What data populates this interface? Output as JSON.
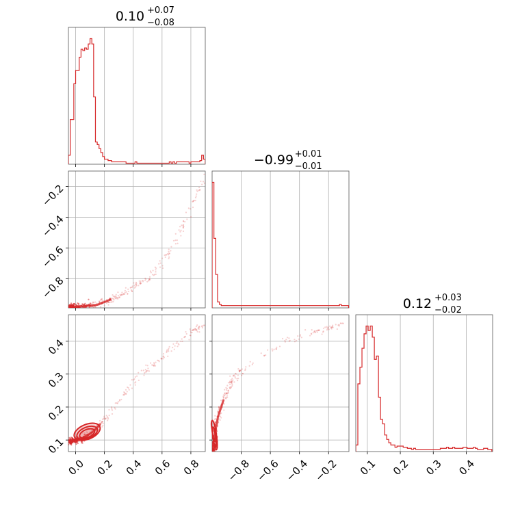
{
  "chart_data": {
    "type": "corner",
    "accent_color": "#d62728",
    "grid": true,
    "titles": [
      {
        "panel": "p00",
        "main": "0.10",
        "sup": "+0.07",
        "sub": "−0.08"
      },
      {
        "panel": "p11",
        "main": "−0.99",
        "sup": "+0.01",
        "sub": "−0.01"
      },
      {
        "panel": "p22",
        "main": "0.12",
        "sup": "+0.03",
        "sub": "−0.02"
      }
    ],
    "axes": {
      "x0": {
        "range": [
          -0.05,
          0.9
        ],
        "ticks": [
          0.0,
          0.2,
          0.4,
          0.6,
          0.8
        ],
        "labels": [
          "0.0",
          "0.2",
          "0.4",
          "0.6",
          "0.8"
        ]
      },
      "x1": {
        "range": [
          -1.0,
          -0.06
        ],
        "ticks": [
          -0.8,
          -0.6,
          -0.4,
          -0.2
        ],
        "labels": [
          "−0.8",
          "−0.6",
          "−0.4",
          "−0.2"
        ]
      },
      "x2": {
        "range": [
          0.065,
          0.48
        ],
        "ticks": [
          0.1,
          0.2,
          0.3,
          0.4
        ],
        "labels": [
          "0.1",
          "0.2",
          "0.3",
          "0.4"
        ]
      },
      "y1": {
        "range": [
          -0.99,
          -0.1
        ],
        "ticks": [
          -0.8,
          -0.6,
          -0.4,
          -0.2
        ],
        "labels": [
          "−0.8",
          "−0.6",
          "−0.4",
          "−0.2"
        ]
      },
      "y2": {
        "range": [
          0.065,
          0.48
        ],
        "ticks": [
          0.1,
          0.2,
          0.3,
          0.4
        ],
        "labels": [
          "0.1",
          "0.2",
          "0.3",
          "0.4"
        ]
      }
    },
    "histograms": [
      {
        "panel": "p00",
        "edges_start": -0.05,
        "bin_width": 0.0125,
        "counts": [
          6,
          33,
          33,
          60,
          70,
          70,
          80,
          86,
          85,
          87,
          86,
          90,
          94,
          90,
          50,
          16,
          14,
          11,
          8,
          5,
          3,
          3,
          2,
          2,
          1,
          1,
          1,
          1,
          1,
          1,
          1,
          1,
          0,
          0,
          0,
          0,
          0,
          1,
          0,
          0,
          0,
          0,
          0,
          0,
          0,
          0,
          0,
          0,
          0,
          0,
          0,
          0,
          0,
          0,
          0,
          0,
          1,
          0,
          1,
          0,
          1,
          1,
          1,
          1,
          1,
          1,
          1,
          0,
          1,
          1,
          1,
          1,
          1,
          2,
          6,
          3
        ]
      },
      {
        "panel": "p11",
        "edges_start": -1.0,
        "bin_width": 0.0125,
        "counts": [
          100,
          55,
          26,
          4,
          2,
          1,
          1,
          1,
          1,
          1,
          1,
          1,
          1,
          1,
          1,
          1,
          1,
          1,
          1,
          1,
          1,
          1,
          1,
          1,
          1,
          1,
          1,
          1,
          1,
          1,
          1,
          1,
          1,
          1,
          1,
          1,
          1,
          1,
          1,
          1,
          1,
          1,
          1,
          1,
          1,
          1,
          1,
          1,
          1,
          1,
          1,
          1,
          1,
          1,
          1,
          1,
          1,
          1,
          1,
          1,
          1,
          1,
          1,
          1,
          1,
          1,
          1,
          1,
          1,
          1,
          2,
          1,
          1,
          1,
          1
        ]
      },
      {
        "panel": "p22",
        "edges_start": 0.065,
        "bin_width": 0.00625,
        "counts": [
          5,
          60,
          75,
          92,
          105,
          112,
          108,
          112,
          102,
          82,
          85,
          48,
          28,
          24,
          14,
          10,
          7,
          5,
          5,
          3,
          4,
          4,
          4,
          3,
          3,
          2,
          2,
          1,
          2,
          1,
          1,
          1,
          1,
          1,
          1,
          1,
          1,
          1,
          1,
          1,
          1,
          2,
          2,
          2,
          3,
          2,
          2,
          3,
          2,
          2,
          2,
          2,
          3,
          3,
          2,
          2,
          2,
          3,
          2,
          1,
          1,
          1,
          2,
          2,
          1,
          1
        ]
      }
    ],
    "joint_2d": [
      {
        "panel": "p10",
        "x_param": 0,
        "y_param": 1,
        "ridge_x": [
          -0.04,
          0.05,
          0.15,
          0.22,
          0.3,
          0.4,
          0.5,
          0.6,
          0.7,
          0.8,
          0.9
        ],
        "ridge_y": [
          -0.985,
          -0.98,
          -0.97,
          -0.945,
          -0.91,
          -0.86,
          -0.8,
          -0.7,
          -0.55,
          -0.35,
          -0.12
        ]
      },
      {
        "panel": "p20",
        "x_param": 0,
        "y_param": 2,
        "ridge_x": [
          -0.04,
          0.05,
          0.12,
          0.2,
          0.3,
          0.45,
          0.6,
          0.8,
          0.9
        ],
        "ridge_y": [
          0.095,
          0.105,
          0.125,
          0.16,
          0.22,
          0.3,
          0.35,
          0.43,
          0.45
        ]
      },
      {
        "panel": "p21",
        "x_param": 1,
        "y_param": 2,
        "ridge_x": [
          -1.0,
          -0.98,
          -0.96,
          -0.93,
          -0.9,
          -0.85,
          -0.8,
          -0.5,
          -0.35,
          -0.2,
          -0.1
        ],
        "ridge_y": [
          0.07,
          0.12,
          0.17,
          0.21,
          0.25,
          0.29,
          0.31,
          0.4,
          0.42,
          0.44,
          0.45
        ]
      }
    ],
    "contours": [
      {
        "panel": "p20",
        "level": "outer",
        "center": [
          0.08,
          0.125
        ],
        "width": 0.19,
        "height": 0.045
      },
      {
        "panel": "p20",
        "level": "middle",
        "center": [
          0.08,
          0.122
        ],
        "width": 0.15,
        "height": 0.034
      },
      {
        "panel": "p20",
        "level": "inner",
        "center": [
          0.08,
          0.12
        ],
        "width": 0.11,
        "height": 0.024
      },
      {
        "panel": "p21",
        "level": "outer",
        "center": [
          -0.985,
          0.115
        ],
        "width": 0.03,
        "height": 0.09
      },
      {
        "panel": "p21",
        "level": "inner",
        "center": [
          -0.985,
          0.11
        ],
        "width": 0.02,
        "height": 0.06
      }
    ]
  }
}
